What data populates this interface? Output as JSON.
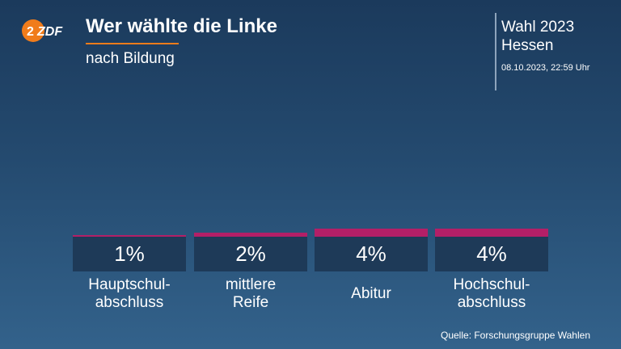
{
  "header": {
    "logo_text": "ZDF",
    "title": "Wer wählte die Linke",
    "subtitle": "nach Bildung"
  },
  "election": {
    "name": "Wahl 2023",
    "region": "Hessen",
    "timestamp": "08.10.2023, 22:59 Uhr"
  },
  "source": "Quelle: Forschungsgruppe Wahlen",
  "colors": {
    "bar": "#b31f67",
    "accent": "#f07c1b",
    "value_box": "#1e3a58"
  },
  "chart_data": {
    "type": "bar",
    "title": "Wer wählte die Linke",
    "subtitle": "nach Bildung",
    "categories": [
      "Hauptschul-\nabschluss",
      "mittlere\nReife",
      "Abitur",
      "Hochschul-\nabschluss"
    ],
    "values": [
      1,
      2,
      4,
      4
    ],
    "value_labels": [
      "1%",
      "2%",
      "4%",
      "4%"
    ],
    "unit": "%"
  }
}
